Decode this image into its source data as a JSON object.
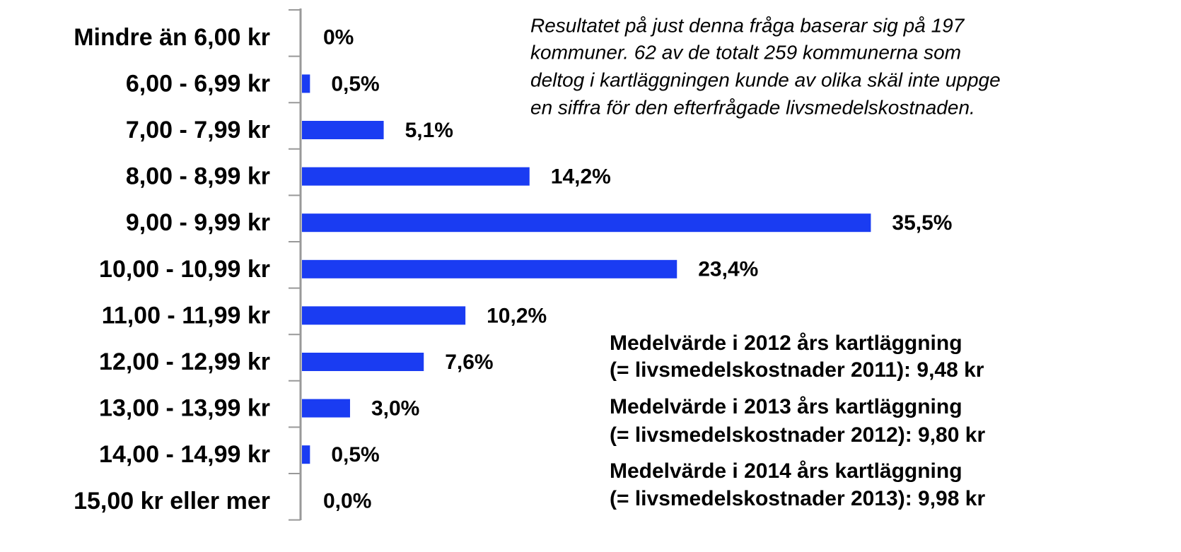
{
  "chart_data": {
    "type": "hbar",
    "categories": [
      "Mindre än 6,00 kr",
      "6,00 - 6,99 kr",
      "7,00 - 7,99 kr",
      "8,00 - 8,99 kr",
      "9,00 - 9,99 kr",
      "10,00 - 10,99 kr",
      "11,00 - 11,99 kr",
      "12,00 - 12,99 kr",
      "13,00 - 13,99 kr",
      "14,00 - 14,99 kr",
      "15,00 kr eller mer"
    ],
    "values": [
      0,
      0.5,
      5.1,
      14.2,
      35.5,
      23.4,
      10.2,
      7.6,
      3.0,
      0.5,
      0.0
    ],
    "value_labels": [
      "0%",
      "0,5%",
      "5,1%",
      "14,2%",
      "35,5%",
      "23,4%",
      "10,2%",
      "7,6%",
      "3,0%",
      "0,5%",
      "0,0%"
    ],
    "color": "#1a3cf2",
    "xlim": [
      0,
      50
    ],
    "annotations": {
      "note": [
        "Resultatet på just denna fråga baserar sig på 197",
        "kommuner. 62 av de totalt 259 kommunerna som",
        "deltog i kartläggningen kunde av olika skäl inte uppge",
        "en siffra för den efterfrågade livsmedelskostnaden."
      ],
      "means": [
        "Medelvärde i 2012 års kartläggning",
        "(= livsmedelskostnader 2011): 9,48 kr",
        "Medelvärde i 2013 års kartläggning",
        "(= livsmedelskostnader 2012): 9,80 kr",
        "Medelvärde i 2014 års kartläggning",
        "(= livsmedelskostnader 2013): 9,98 kr"
      ]
    }
  }
}
